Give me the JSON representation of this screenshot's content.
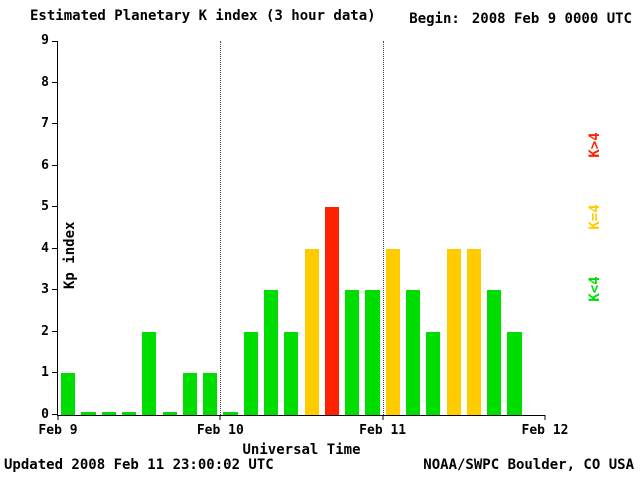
{
  "header": {
    "title": "Estimated Planetary K index (3 hour data)",
    "begin_label": "Begin:",
    "begin_value": "2008 Feb 9 0000 UTC"
  },
  "footer": {
    "updated": "Updated 2008 Feb 11 23:00:02 UTC",
    "source": "NOAA/SWPC Boulder, CO USA"
  },
  "chart_data": {
    "type": "bar",
    "title": "Estimated Planetary K index (3 hour data)",
    "xlabel": "Universal Time",
    "ylabel": "Kp index",
    "ylim": [
      0,
      9
    ],
    "y_ticks": [
      0,
      1,
      2,
      3,
      4,
      5,
      6,
      7,
      8,
      9
    ],
    "x_ticks": [
      "Feb 9",
      "Feb 10",
      "Feb 11",
      "Feb 12"
    ],
    "slots_per_day": 8,
    "total_slots": 24,
    "interval_hours": 3,
    "values": [
      1,
      0,
      0,
      0,
      2,
      0,
      1,
      1,
      0,
      2,
      3,
      2,
      4,
      5,
      3,
      3,
      4,
      3,
      2,
      4,
      4,
      3,
      2
    ],
    "colors": {
      "low": "#00dd00",
      "mid": "#ffcc00",
      "high": "#ff2200"
    },
    "thresholds": {
      "low": "K<4",
      "mid": "K=4",
      "high": "K>4"
    },
    "legend": [
      {
        "label": "K>4",
        "color": "#ff2200"
      },
      {
        "label": "K=4",
        "color": "#ffcc00"
      },
      {
        "label": "K<4",
        "color": "#00dd00"
      }
    ],
    "grid": "dotted vertical lines at day boundaries",
    "legend_position": "right"
  }
}
